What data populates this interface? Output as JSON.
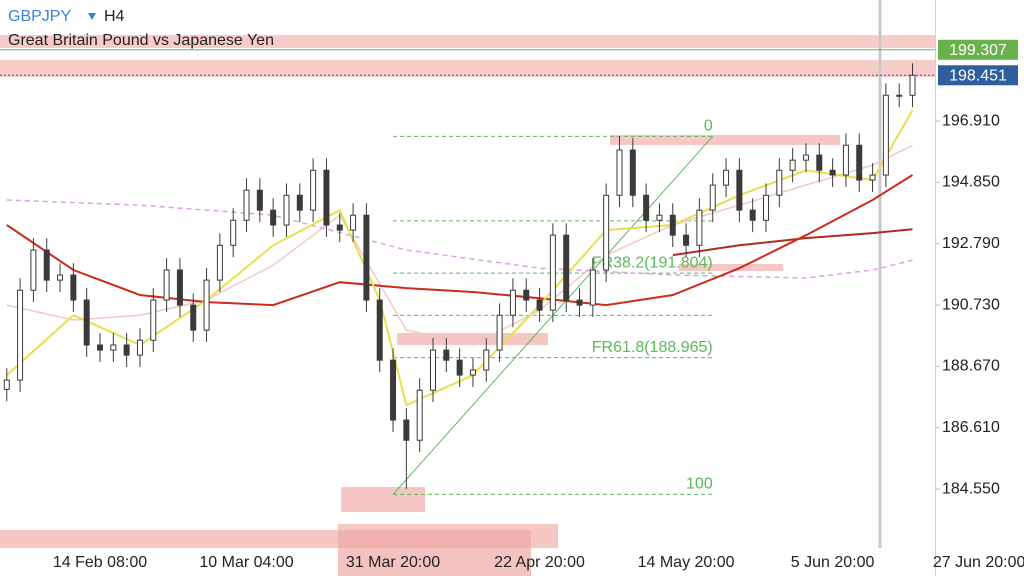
{
  "header": {
    "symbol": "GBPJPY",
    "timeframe": "H4",
    "description": "Great Britain Pound vs Japanese Yen"
  },
  "chart_data": {
    "type": "candlestick",
    "categories": [
      null,
      null,
      null,
      null,
      null,
      null,
      null,
      "14 Feb 08:00",
      null,
      null,
      null,
      null,
      null,
      null,
      null,
      null,
      null,
      null,
      "10 Mar 04:00",
      null,
      null,
      null,
      null,
      null,
      null,
      null,
      null,
      null,
      null,
      "31 Mar 20:00",
      null,
      null,
      null,
      null,
      null,
      null,
      null,
      null,
      null,
      null,
      "22 Apr 20:00",
      null,
      null,
      null,
      null,
      null,
      null,
      null,
      null,
      null,
      null,
      "14 May 20:00",
      null,
      null,
      null,
      null,
      null,
      null,
      null,
      null,
      null,
      null,
      "5 Jun 20:00",
      null,
      null,
      null,
      null,
      null,
      null,
      null,
      null,
      null,
      null,
      "27 Jun 20:00"
    ],
    "open": [
      187.9,
      188.21,
      191.23,
      192.58,
      191.57,
      191.74,
      190.9,
      189.39,
      189.22,
      189.39,
      189.05,
      189.55,
      190.9,
      191.91,
      190.73,
      189.89,
      191.57,
      192.74,
      193.58,
      194.59,
      193.92,
      193.42,
      194.42,
      193.92,
      195.26,
      193.42,
      193.25,
      193.75,
      190.9,
      188.88,
      186.87,
      186.19,
      187.87,
      189.22,
      188.88,
      188.38,
      188.55,
      189.22,
      190.39,
      191.23,
      190.9,
      190.56,
      193.08,
      190.9,
      190.73,
      191.91,
      194.42,
      195.94,
      194.42,
      193.58,
      193.75,
      193.08,
      192.74,
      193.92,
      194.76,
      195.26,
      193.92,
      193.58,
      194.42,
      195.26,
      195.6,
      195.77,
      195.26,
      195.1,
      196.1,
      194.93,
      195.1,
      197.78,
      197.78,
      null,
      null,
      null,
      null,
      null
    ],
    "high": [
      188.61,
      191.63,
      192.98,
      192.98,
      192.14,
      192.14,
      191.3,
      189.79,
      189.79,
      189.79,
      189.95,
      191.3,
      192.31,
      192.31,
      191.13,
      191.97,
      193.14,
      193.98,
      194.99,
      194.99,
      194.32,
      194.82,
      194.82,
      195.66,
      195.66,
      193.82,
      194.15,
      194.15,
      191.3,
      189.28,
      187.27,
      188.27,
      189.62,
      189.62,
      189.28,
      188.95,
      189.62,
      190.79,
      191.63,
      191.63,
      191.3,
      193.48,
      193.48,
      191.3,
      192.31,
      194.82,
      196.4,
      196.34,
      194.82,
      194.15,
      194.15,
      193.48,
      194.32,
      195.16,
      195.66,
      195.66,
      194.32,
      194.82,
      195.66,
      196.0,
      196.17,
      196.17,
      195.66,
      196.5,
      196.5,
      195.5,
      198.18,
      198.18,
      198.85,
      null,
      null,
      null,
      null,
      null
    ],
    "low": [
      187.5,
      187.81,
      190.83,
      191.17,
      191.17,
      190.5,
      188.99,
      188.82,
      188.82,
      188.65,
      188.65,
      189.15,
      190.5,
      190.33,
      189.49,
      189.49,
      191.17,
      192.34,
      193.18,
      193.52,
      193.02,
      193.02,
      193.52,
      193.52,
      193.02,
      192.85,
      192.85,
      190.5,
      188.48,
      186.47,
      184.55,
      185.79,
      187.47,
      188.48,
      187.98,
      187.98,
      188.15,
      188.82,
      189.99,
      190.5,
      190.16,
      190.16,
      190.5,
      190.33,
      190.33,
      191.51,
      194.02,
      194.02,
      193.18,
      193.18,
      192.68,
      192.34,
      192.34,
      193.52,
      194.36,
      193.52,
      193.18,
      193.18,
      194.02,
      194.86,
      195.2,
      194.86,
      194.7,
      194.7,
      194.53,
      194.53,
      194.7,
      197.38,
      197.38,
      null,
      null,
      null,
      null,
      null
    ],
    "close": [
      188.21,
      191.23,
      192.58,
      191.57,
      191.74,
      190.9,
      189.39,
      189.22,
      189.39,
      189.05,
      189.55,
      190.9,
      191.91,
      190.73,
      189.89,
      191.57,
      192.74,
      193.58,
      194.59,
      193.92,
      193.42,
      194.42,
      193.92,
      195.26,
      193.42,
      193.25,
      193.75,
      190.9,
      188.88,
      186.87,
      186.19,
      187.87,
      189.22,
      188.88,
      188.38,
      188.55,
      189.22,
      190.39,
      191.23,
      190.9,
      190.56,
      193.08,
      190.9,
      190.73,
      191.91,
      194.42,
      195.94,
      194.42,
      193.58,
      193.75,
      193.08,
      192.74,
      193.92,
      194.76,
      195.26,
      193.92,
      193.58,
      194.42,
      195.26,
      195.6,
      195.77,
      195.26,
      195.1,
      196.1,
      194.93,
      195.1,
      197.78,
      197.78,
      198.45,
      null,
      null,
      null,
      null,
      null
    ],
    "color": "#3a3a3a",
    "ylim": [
      182.57,
      200.98
    ],
    "yticks": [
      {
        "value": 184.55,
        "label": "184.550"
      },
      {
        "value": 186.61,
        "label": "186.610"
      },
      {
        "value": 188.67,
        "label": "188.670"
      },
      {
        "value": 190.73,
        "label": "190.730"
      },
      {
        "value": 192.79,
        "label": "192.790"
      },
      {
        "value": 194.85,
        "label": "194.850"
      },
      {
        "value": 196.91,
        "label": "196.910"
      }
    ],
    "moving_averages": [
      {
        "color": "#f1c8c8",
        "x": [
          0,
          5,
          10,
          15,
          20,
          25,
          30,
          35,
          40,
          45,
          50,
          55,
          60,
          65,
          68
        ],
        "values": [
          190.73,
          190.23,
          190.39,
          190.9,
          192.07,
          193.75,
          189.89,
          189.39,
          190.56,
          192.41,
          193.42,
          194.09,
          194.76,
          195.43,
          196.1
        ]
      },
      {
        "color": "#e0a0e8",
        "dashed": true,
        "x": [
          0,
          10,
          20,
          30,
          40,
          50,
          60,
          65,
          68
        ],
        "values": [
          194.26,
          194.09,
          193.75,
          192.58,
          191.97,
          191.74,
          191.64,
          191.91,
          192.24
        ]
      },
      {
        "color": "#b22a1e",
        "x": [
          50,
          55,
          60,
          65,
          68
        ],
        "values": [
          192.41,
          192.74,
          192.98,
          193.15,
          193.28
        ]
      },
      {
        "color": "#cc2b1d",
        "x": [
          0,
          5,
          10,
          15,
          20,
          25,
          30,
          35,
          40,
          45,
          50,
          55,
          60,
          65,
          68
        ],
        "values": [
          193.42,
          191.91,
          191.07,
          190.83,
          190.73,
          191.5,
          191.3,
          191.17,
          190.96,
          190.73,
          191.07,
          191.97,
          193.08,
          194.26,
          195.1
        ]
      },
      {
        "color": "#e8df4a",
        "x": [
          0,
          5,
          10,
          15,
          20,
          25,
          28,
          30,
          35,
          40,
          45,
          50,
          55,
          60,
          65,
          68
        ],
        "values": [
          188.38,
          190.39,
          189.39,
          190.9,
          192.74,
          193.92,
          190.9,
          187.37,
          188.38,
          190.73,
          193.25,
          193.42,
          194.42,
          195.26,
          194.93,
          197.28
        ]
      }
    ],
    "fibonacci": {
      "color": "#5cb85c",
      "x": [
        29,
        53
      ],
      "levels": [
        {
          "value": 196.4,
          "label": "0"
        },
        193.56,
        {
          "value": 191.804,
          "label": "FR38.2(191.804)"
        },
        190.385,
        {
          "value": 188.965,
          "label": "FR61.8(188.965)"
        },
        {
          "value": 184.37,
          "label": "100"
        }
      ]
    },
    "price_lines": [
      {
        "value": 199.307,
        "label": "199.307",
        "color": "#6ab04c"
      },
      {
        "value": 198.451,
        "label": "198.451",
        "color": "#2f5d9e"
      }
    ]
  }
}
